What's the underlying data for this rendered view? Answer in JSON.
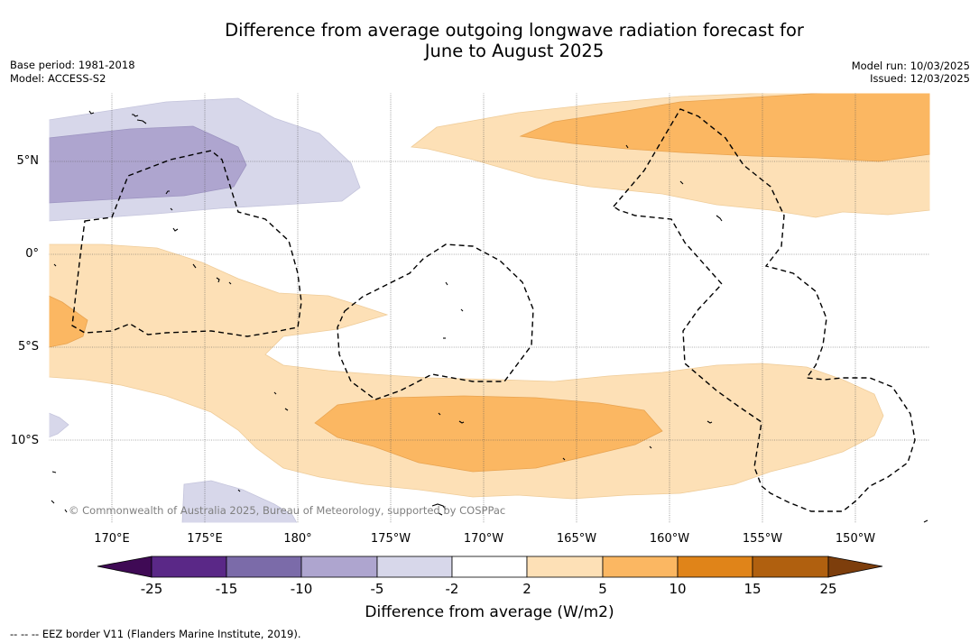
{
  "title": {
    "line1": "Difference from average outgoing longwave radiation forecast for",
    "line2": "June to August 2025"
  },
  "info_left": {
    "base_period": "Base period: 1981-2018",
    "model": "Model: ACCESS-S2"
  },
  "info_right": {
    "model_run": "Model run: 10/03/2025",
    "issued": "Issued: 12/03/2025"
  },
  "map": {
    "lat_labels": [
      "5°N",
      "0°",
      "5°S",
      "10°S"
    ],
    "lon_labels": [
      "170°E",
      "175°E",
      "180°",
      "175°W",
      "170°W",
      "165°W",
      "160°W",
      "155°W",
      "150°W"
    ],
    "credit": "© Commonwealth of Australia 2025, Bureau of Meteorology, supported by COSPPac",
    "colors": {
      "land_outline": "#000000",
      "gridline": "#555555",
      "eez_border": "#000000"
    }
  },
  "colorbar": {
    "tick_labels": [
      "-25",
      "-15",
      "-10",
      "-5",
      "-2",
      "2",
      "5",
      "10",
      "15",
      "25"
    ],
    "colors": [
      "#3f0a55",
      "#5a2887",
      "#7b6ba9",
      "#aea5cf",
      "#d7d7ea",
      "#ffffff",
      "#fde0b6",
      "#fbb762",
      "#e08419",
      "#b0600f",
      "#7d3e0c"
    ],
    "label": "Difference from average (W/m2)"
  },
  "footer": {
    "eez_legend": "-- -- -- EEZ border V11 (Flanders Marine Institute, 2019)."
  }
}
